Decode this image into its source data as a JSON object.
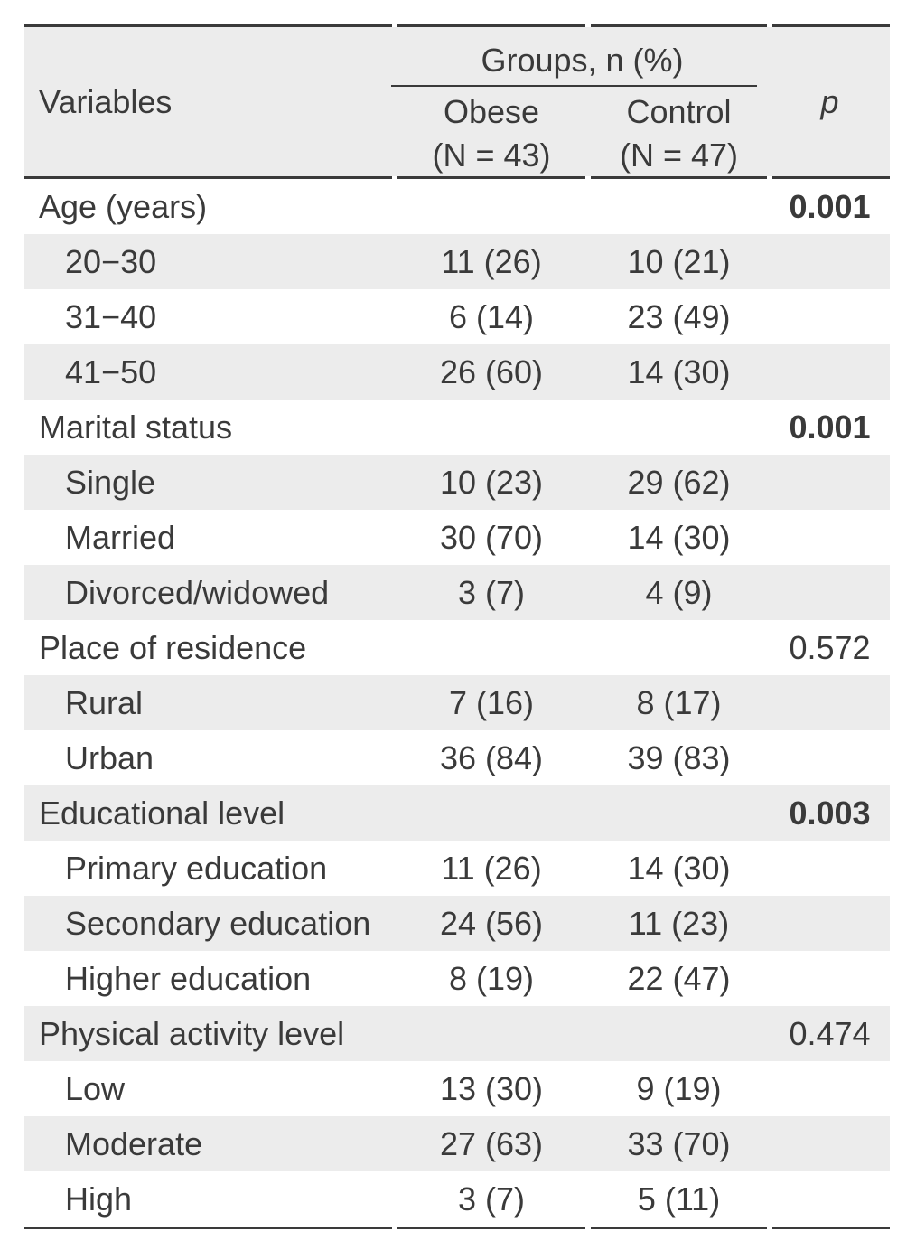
{
  "table": {
    "header": {
      "variables": "Variables",
      "groups": "Groups, n (%)",
      "obese": "Obese",
      "obese_n": "(N = 43)",
      "control": "Control",
      "control_n": "(N = 47)",
      "p": "p"
    },
    "rows": [
      {
        "label": "Age (years)",
        "type": "category",
        "obese": "",
        "control": "",
        "p": "0.001",
        "p_bold": true
      },
      {
        "label": "20−30",
        "type": "sub",
        "obese": "11 (26)",
        "control": "10 (21)",
        "p": "",
        "p_bold": false
      },
      {
        "label": "31−40",
        "type": "sub",
        "obese": "6 (14)",
        "control": "23 (49)",
        "p": "",
        "p_bold": false
      },
      {
        "label": "41−50",
        "type": "sub",
        "obese": "26 (60)",
        "control": "14 (30)",
        "p": "",
        "p_bold": false
      },
      {
        "label": "Marital status",
        "type": "category",
        "obese": "",
        "control": "",
        "p": "0.001",
        "p_bold": true
      },
      {
        "label": "Single",
        "type": "sub",
        "obese": "10 (23)",
        "control": "29 (62)",
        "p": "",
        "p_bold": false
      },
      {
        "label": "Married",
        "type": "sub",
        "obese": "30 (70)",
        "control": "14 (30)",
        "p": "",
        "p_bold": false
      },
      {
        "label": "Divorced/widowed",
        "type": "sub",
        "obese": "3 (7)",
        "control": "4 (9)",
        "p": "",
        "p_bold": false
      },
      {
        "label": "Place of residence",
        "type": "category",
        "obese": "",
        "control": "",
        "p": "0.572",
        "p_bold": false
      },
      {
        "label": "Rural",
        "type": "sub",
        "obese": "7 (16)",
        "control": "8 (17)",
        "p": "",
        "p_bold": false
      },
      {
        "label": "Urban",
        "type": "sub",
        "obese": "36 (84)",
        "control": "39 (83)",
        "p": "",
        "p_bold": false
      },
      {
        "label": "Educational level",
        "type": "category",
        "obese": "",
        "control": "",
        "p": "0.003",
        "p_bold": true
      },
      {
        "label": "Primary education",
        "type": "sub",
        "obese": "11 (26)",
        "control": "14 (30)",
        "p": "",
        "p_bold": false
      },
      {
        "label": "Secondary education",
        "type": "sub",
        "obese": "24 (56)",
        "control": "11 (23)",
        "p": "",
        "p_bold": false
      },
      {
        "label": "Higher education",
        "type": "sub",
        "obese": "8 (19)",
        "control": "22 (47)",
        "p": "",
        "p_bold": false
      },
      {
        "label": "Physical activity level",
        "type": "category",
        "obese": "",
        "control": "",
        "p": "0.474",
        "p_bold": false
      },
      {
        "label": "Low",
        "type": "sub",
        "obese": "13 (30)",
        "control": "9 (19)",
        "p": "",
        "p_bold": false
      },
      {
        "label": "Moderate",
        "type": "sub",
        "obese": "27 (63)",
        "control": "33 (70)",
        "p": "",
        "p_bold": false
      },
      {
        "label": "High",
        "type": "sub",
        "obese": "3 (7)",
        "control": "5 (11)",
        "p": "",
        "p_bold": false
      }
    ]
  },
  "colors": {
    "row_stripe": "#ececec",
    "header_background": "#ececec",
    "border": "#3a3a3a",
    "text": "#3a3a3a"
  }
}
